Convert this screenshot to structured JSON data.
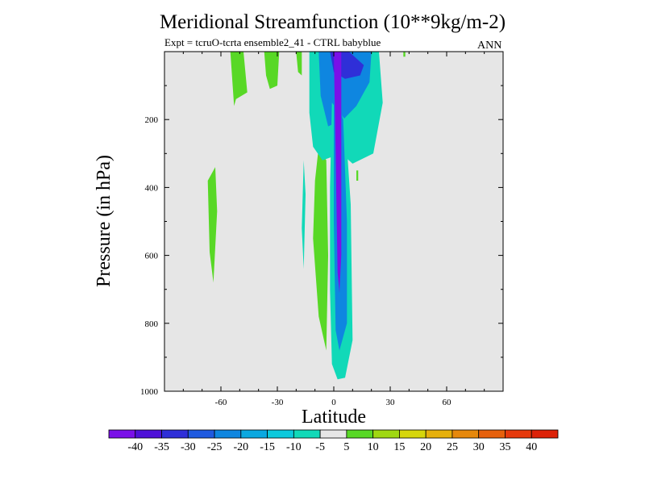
{
  "chart_data": {
    "type": "heatmap",
    "title": "Meridional Streamfunction (10**9kg/m-2)",
    "subtitle": "Expt = tcruO-tcrta ensemble2_41 - CTRL babyblue",
    "period_label": "ANN",
    "xlabel": "Latitude",
    "ylabel": "Pressure (in hPa)",
    "xlim": [
      -90,
      90
    ],
    "ylim": [
      0,
      1000
    ],
    "y_reversed": true,
    "grid": false,
    "xticks": [
      -60,
      -30,
      0,
      30,
      60
    ],
    "yticks": [
      200,
      400,
      600,
      800,
      1000
    ],
    "colorbar": {
      "levels": [
        -40,
        -35,
        -30,
        -25,
        -20,
        -15,
        -10,
        -5,
        5,
        10,
        15,
        20,
        25,
        30,
        35,
        40
      ],
      "colors": [
        "#7a10e8",
        "#4f11d8",
        "#2f2fd8",
        "#1f5ae0",
        "#0e86e0",
        "#0ba8e0",
        "#0cc9dc",
        "#11d9b8",
        "#e6e6e6",
        "#58d826",
        "#9fd812",
        "#d6d60c",
        "#e6b00c",
        "#e6880c",
        "#e6600c",
        "#e6390c",
        "#dd2208"
      ]
    },
    "background_value_color": "#e6e6e6",
    "contour_regions": [
      {
        "name": "green-upper-left",
        "level_index": 9,
        "polygon_latp": [
          [
            -55,
            0
          ],
          [
            -48,
            0
          ],
          [
            -46,
            120
          ],
          [
            -52,
            140
          ],
          [
            -53,
            160
          ]
        ]
      },
      {
        "name": "green-upper-mid",
        "level_index": 9,
        "polygon_latp": [
          [
            -37,
            0
          ],
          [
            -29,
            0
          ],
          [
            -30,
            100
          ],
          [
            -34,
            110
          ],
          [
            -36,
            70
          ]
        ]
      },
      {
        "name": "green-upper-small",
        "level_index": 9,
        "polygon_latp": [
          [
            -20,
            0
          ],
          [
            -17,
            0
          ],
          [
            -17,
            70
          ],
          [
            -19,
            60
          ]
        ]
      },
      {
        "name": "green-left-band",
        "level_index": 9,
        "polygon_latp": [
          [
            -67,
            380
          ],
          [
            -63,
            340
          ],
          [
            -62,
            470
          ],
          [
            -64,
            680
          ],
          [
            -66,
            590
          ]
        ]
      },
      {
        "name": "cyan-left-sliver",
        "level_index": 7,
        "polygon_latp": [
          [
            -16,
            320
          ],
          [
            -15,
            420
          ],
          [
            -16,
            640
          ],
          [
            -17,
            520
          ]
        ]
      },
      {
        "name": "green-left-of-core",
        "level_index": 9,
        "polygon_latp": [
          [
            -8,
            280
          ],
          [
            -4,
            320
          ],
          [
            -3,
            600
          ],
          [
            -4,
            880
          ],
          [
            -8,
            780
          ],
          [
            -11,
            550
          ],
          [
            -10,
            380
          ]
        ]
      },
      {
        "name": "cyan-wide-upper",
        "level_index": 7,
        "polygon_latp": [
          [
            -13,
            0
          ],
          [
            24,
            0
          ],
          [
            26,
            150
          ],
          [
            21,
            300
          ],
          [
            10,
            330
          ],
          [
            4,
            300
          ],
          [
            -6,
            320
          ],
          [
            -11,
            280
          ],
          [
            -13,
            180
          ]
        ]
      },
      {
        "name": "blue-upper-wedge",
        "level_index": 4,
        "polygon_latp": [
          [
            -8,
            0
          ],
          [
            20,
            0
          ],
          [
            19,
            90
          ],
          [
            12,
            160
          ],
          [
            5,
            200
          ],
          [
            -3,
            220
          ],
          [
            -7,
            130
          ]
        ]
      },
      {
        "name": "deep-blue-upper",
        "level_index": 2,
        "polygon_latp": [
          [
            -2,
            0
          ],
          [
            8,
            0
          ],
          [
            16,
            40
          ],
          [
            14,
            70
          ],
          [
            6,
            80
          ],
          [
            0,
            60
          ]
        ]
      },
      {
        "name": "cyan-core-column",
        "level_index": 7,
        "polygon_latp": [
          [
            -1,
            150
          ],
          [
            6,
            200
          ],
          [
            9,
            450
          ],
          [
            10,
            850
          ],
          [
            6,
            960
          ],
          [
            2,
            965
          ],
          [
            -1,
            920
          ],
          [
            -2,
            700
          ],
          [
            -2,
            400
          ]
        ]
      },
      {
        "name": "blue-core-column",
        "level_index": 4,
        "polygon_latp": [
          [
            0,
            120
          ],
          [
            5,
            200
          ],
          [
            7,
            500
          ],
          [
            7,
            800
          ],
          [
            3,
            880
          ],
          [
            1,
            820
          ],
          [
            0,
            500
          ]
        ]
      },
      {
        "name": "purple-core",
        "level_index": 0,
        "polygon_latp": [
          [
            0,
            0
          ],
          [
            4,
            0
          ],
          [
            4,
            250
          ],
          [
            4,
            600
          ],
          [
            3,
            710
          ],
          [
            2,
            650
          ],
          [
            1,
            300
          ]
        ]
      },
      {
        "name": "green-tiny-right",
        "level_index": 9,
        "polygon_latp": [
          [
            37,
            0
          ],
          [
            38,
            0
          ],
          [
            38,
            15
          ],
          [
            37,
            15
          ]
        ]
      },
      {
        "name": "green-speck-right",
        "level_index": 9,
        "polygon_latp": [
          [
            12,
            350
          ],
          [
            13,
            350
          ],
          [
            13,
            380
          ],
          [
            12,
            380
          ]
        ]
      }
    ]
  }
}
